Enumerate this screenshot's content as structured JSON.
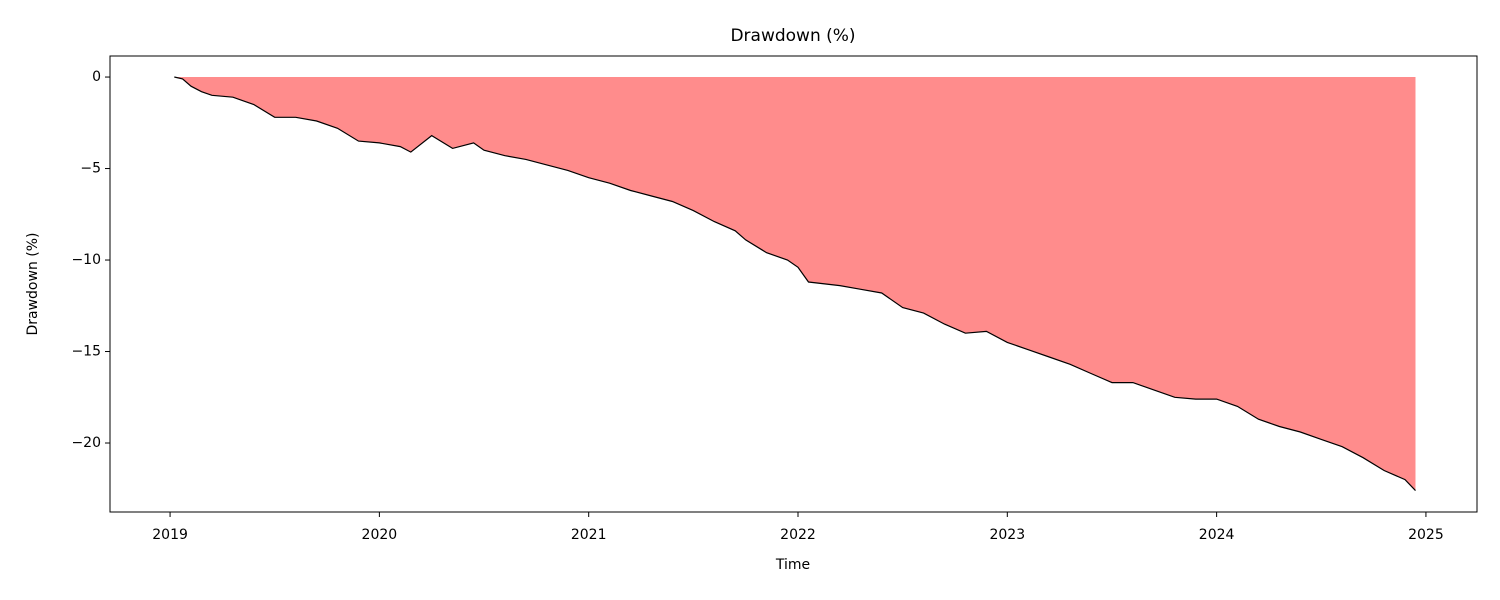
{
  "chart_data": {
    "type": "area",
    "title": "Drawdown (%)",
    "x_label": "Time",
    "y_label": "Drawdown (%)",
    "x": [
      2019.02,
      2019.06,
      2019.1,
      2019.15,
      2019.2,
      2019.3,
      2019.4,
      2019.5,
      2019.6,
      2019.7,
      2019.8,
      2019.9,
      2020.0,
      2020.1,
      2020.15,
      2020.25,
      2020.35,
      2020.45,
      2020.5,
      2020.6,
      2020.7,
      2020.8,
      2020.9,
      2021.0,
      2021.1,
      2021.2,
      2021.3,
      2021.4,
      2021.5,
      2021.6,
      2021.7,
      2021.75,
      2021.85,
      2021.95,
      2022.0,
      2022.05,
      2022.2,
      2022.3,
      2022.4,
      2022.5,
      2022.6,
      2022.7,
      2022.8,
      2022.9,
      2023.0,
      2023.1,
      2023.2,
      2023.3,
      2023.4,
      2023.5,
      2023.6,
      2023.7,
      2023.8,
      2023.9,
      2024.0,
      2024.1,
      2024.2,
      2024.3,
      2024.4,
      2024.5,
      2024.6,
      2024.7,
      2024.8,
      2024.9,
      2024.95
    ],
    "values": [
      0,
      -0.1,
      -0.5,
      -0.8,
      -1.0,
      -1.1,
      -1.5,
      -2.2,
      -2.2,
      -2.4,
      -2.8,
      -3.5,
      -3.6,
      -3.8,
      -4.1,
      -3.2,
      -3.9,
      -3.6,
      -4.0,
      -4.3,
      -4.5,
      -4.8,
      -5.1,
      -5.5,
      -5.8,
      -6.2,
      -6.5,
      -6.8,
      -7.3,
      -7.9,
      -8.4,
      -8.9,
      -9.6,
      -10.0,
      -10.4,
      -11.2,
      -11.4,
      -11.6,
      -11.8,
      -12.6,
      -12.9,
      -13.5,
      -14.0,
      -13.9,
      -14.5,
      -14.9,
      -15.3,
      -15.7,
      -16.2,
      -16.7,
      -16.7,
      -17.1,
      -17.5,
      -17.6,
      -17.6,
      -18.0,
      -18.7,
      -19.1,
      -19.4,
      -19.8,
      -20.2,
      -20.8,
      -21.5,
      -22.0,
      -22.6
    ],
    "color": "#000000",
    "fill_color": "#ff8c8c",
    "xlim": [
      2018.713,
      2025.244
    ],
    "ylim": [
      -23.77,
      1.15
    ],
    "xticks": [
      2019,
      2020,
      2021,
      2022,
      2023,
      2024,
      2025
    ],
    "yticks": [
      0,
      {
        "value": -5,
        "label": "−5"
      },
      {
        "value": -10,
        "label": "−10"
      },
      {
        "value": -15,
        "label": "−15"
      },
      {
        "value": -20,
        "label": "−20"
      }
    ]
  }
}
